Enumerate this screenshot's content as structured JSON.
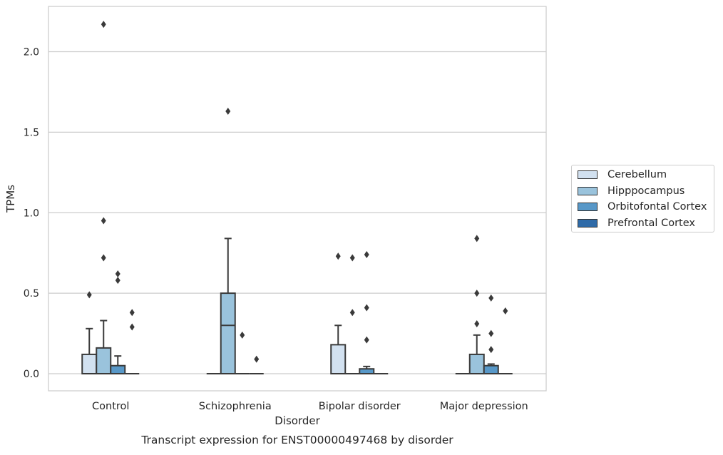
{
  "chart_data": {
    "type": "box",
    "caption": "Transcript expression for ENST00000497468 by disorder",
    "xlabel": "Disorder",
    "ylabel": "TPMs",
    "ylim": [
      -0.1,
      2.28
    ],
    "yticks": [
      "0.0",
      "0.5",
      "1.0",
      "1.5",
      "2.0"
    ],
    "grid": "horizontal",
    "legend_position": "right",
    "categories": [
      "Control",
      "Schizophrenia",
      "Bipolar disorder",
      "Major depression"
    ],
    "series": [
      {
        "name": "Cerebellum",
        "color": "#d2e1f0",
        "boxes": [
          {
            "q1": 0,
            "median": 0,
            "q3": 0.12,
            "whisker_low": 0,
            "whisker_high": 0.28,
            "outliers": [
              0.49
            ]
          },
          {
            "q1": 0,
            "median": 0,
            "q3": 0,
            "whisker_low": 0,
            "whisker_high": 0,
            "outliers": []
          },
          {
            "q1": 0,
            "median": 0,
            "q3": 0.18,
            "whisker_low": 0,
            "whisker_high": 0.3,
            "outliers": [
              0.73
            ]
          },
          {
            "q1": 0,
            "median": 0,
            "q3": 0,
            "whisker_low": 0,
            "whisker_high": 0,
            "outliers": []
          }
        ]
      },
      {
        "name": "Hipppocampus",
        "color": "#9ac3dc",
        "boxes": [
          {
            "q1": 0,
            "median": 0,
            "q3": 0.16,
            "whisker_low": 0,
            "whisker_high": 0.33,
            "outliers": [
              0.72,
              0.95,
              2.17
            ]
          },
          {
            "q1": 0,
            "median": 0.3,
            "q3": 0.5,
            "whisker_low": 0,
            "whisker_high": 0.84,
            "outliers": [
              1.63
            ]
          },
          {
            "q1": 0,
            "median": 0,
            "q3": 0,
            "whisker_low": 0,
            "whisker_high": 0,
            "outliers": [
              0.72,
              0.38
            ]
          },
          {
            "q1": 0,
            "median": 0,
            "q3": 0.12,
            "whisker_low": 0,
            "whisker_high": 0.24,
            "outliers": [
              0.31,
              0.5,
              0.84
            ]
          }
        ]
      },
      {
        "name": "Orbitofontal Cortex",
        "color": "#5898c8",
        "boxes": [
          {
            "q1": 0,
            "median": 0,
            "q3": 0.05,
            "whisker_low": 0,
            "whisker_high": 0.11,
            "outliers": [
              0.58,
              0.62
            ]
          },
          {
            "q1": 0,
            "median": 0,
            "q3": 0,
            "whisker_low": 0,
            "whisker_high": 0,
            "outliers": [
              0.24
            ]
          },
          {
            "q1": 0,
            "median": 0,
            "q3": 0.03,
            "whisker_low": 0,
            "whisker_high": 0.045,
            "outliers": [
              0.21,
              0.41,
              0.74
            ]
          },
          {
            "q1": 0,
            "median": 0,
            "q3": 0.05,
            "whisker_low": 0,
            "whisker_high": 0.06,
            "outliers": [
              0.15,
              0.25,
              0.47
            ]
          }
        ]
      },
      {
        "name": "Prefrontal Cortex",
        "color": "#2f6ba8",
        "boxes": [
          {
            "q1": 0,
            "median": 0,
            "q3": 0,
            "whisker_low": 0,
            "whisker_high": 0,
            "outliers": [
              0.29,
              0.38
            ]
          },
          {
            "q1": 0,
            "median": 0,
            "q3": 0,
            "whisker_low": 0,
            "whisker_high": 0,
            "outliers": [
              0.09
            ]
          },
          {
            "q1": 0,
            "median": 0,
            "q3": 0,
            "whisker_low": 0,
            "whisker_high": 0,
            "outliers": []
          },
          {
            "q1": 0,
            "median": 0,
            "q3": 0,
            "whisker_low": 0,
            "whisker_high": 0,
            "outliers": [
              0.39
            ]
          }
        ]
      }
    ]
  }
}
